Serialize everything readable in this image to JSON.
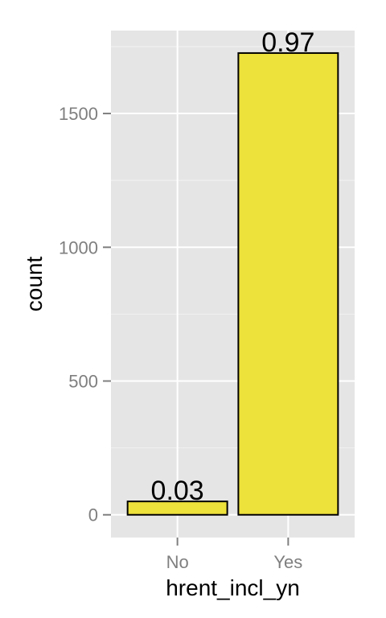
{
  "chart_data": {
    "type": "bar",
    "categories": [
      "No",
      "Yes"
    ],
    "values": [
      50,
      1726
    ],
    "data_labels": [
      "0.03",
      "0.97"
    ],
    "xlabel": "hrent_incl_yn",
    "ylabel": "count",
    "yticks": [
      0,
      500,
      1000,
      1500
    ],
    "ytick_labels": [
      "0",
      "500",
      "1000",
      "1500"
    ],
    "ylim": [
      -85,
      1810
    ],
    "grid": true,
    "colors": {
      "bar_fill": "#ede13b",
      "bar_stroke": "#000000",
      "panel": "#e5e5e5",
      "grid_major": "#ffffff",
      "grid_minor": "#f2f2f2"
    }
  }
}
